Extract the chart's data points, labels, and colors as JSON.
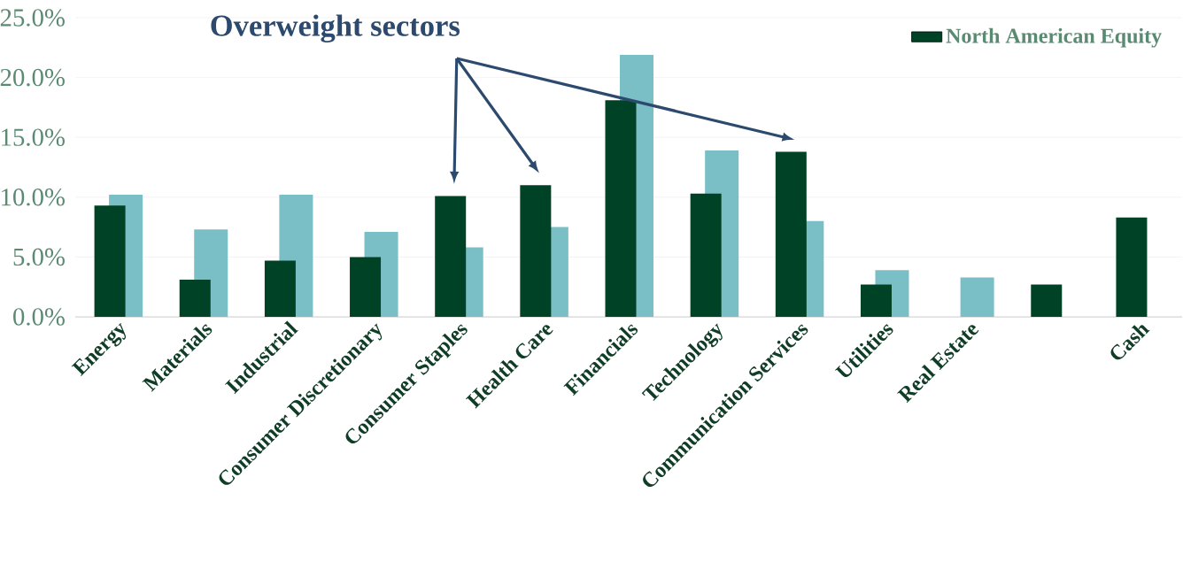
{
  "chart_data": {
    "type": "bar",
    "categories": [
      "Energy",
      "Materials",
      "Industrial",
      "Consumer Discretionary",
      "Consumer Staples",
      "Health Care",
      "Financials",
      "Technology",
      "Communication Services",
      "Utilities",
      "Real Estate",
      null,
      "Cash"
    ],
    "series": [
      {
        "name": "North American Equity",
        "color": "#004225",
        "values": [
          9.3,
          3.1,
          4.7,
          5.0,
          10.1,
          11.0,
          18.1,
          10.3,
          13.8,
          2.7,
          null,
          2.7,
          8.3
        ]
      },
      {
        "color": "#7bbfc6",
        "values": [
          10.2,
          7.3,
          10.2,
          7.1,
          5.8,
          7.5,
          21.9,
          13.9,
          8.0,
          3.9,
          3.3,
          null,
          null
        ]
      }
    ],
    "ylim": [
      0,
      25
    ],
    "yticks": [
      {
        "value": 0,
        "label": "0.0%"
      },
      {
        "value": 5,
        "label": "5.0%"
      },
      {
        "value": 10,
        "label": "10.0%"
      },
      {
        "value": 15,
        "label": "15.0%"
      },
      {
        "value": 20,
        "label": "20.0%"
      },
      {
        "value": 25,
        "label": "25.0%"
      }
    ],
    "grid": "y",
    "legend": "top right",
    "annotations": [
      "Overweight sectors"
    ]
  }
}
